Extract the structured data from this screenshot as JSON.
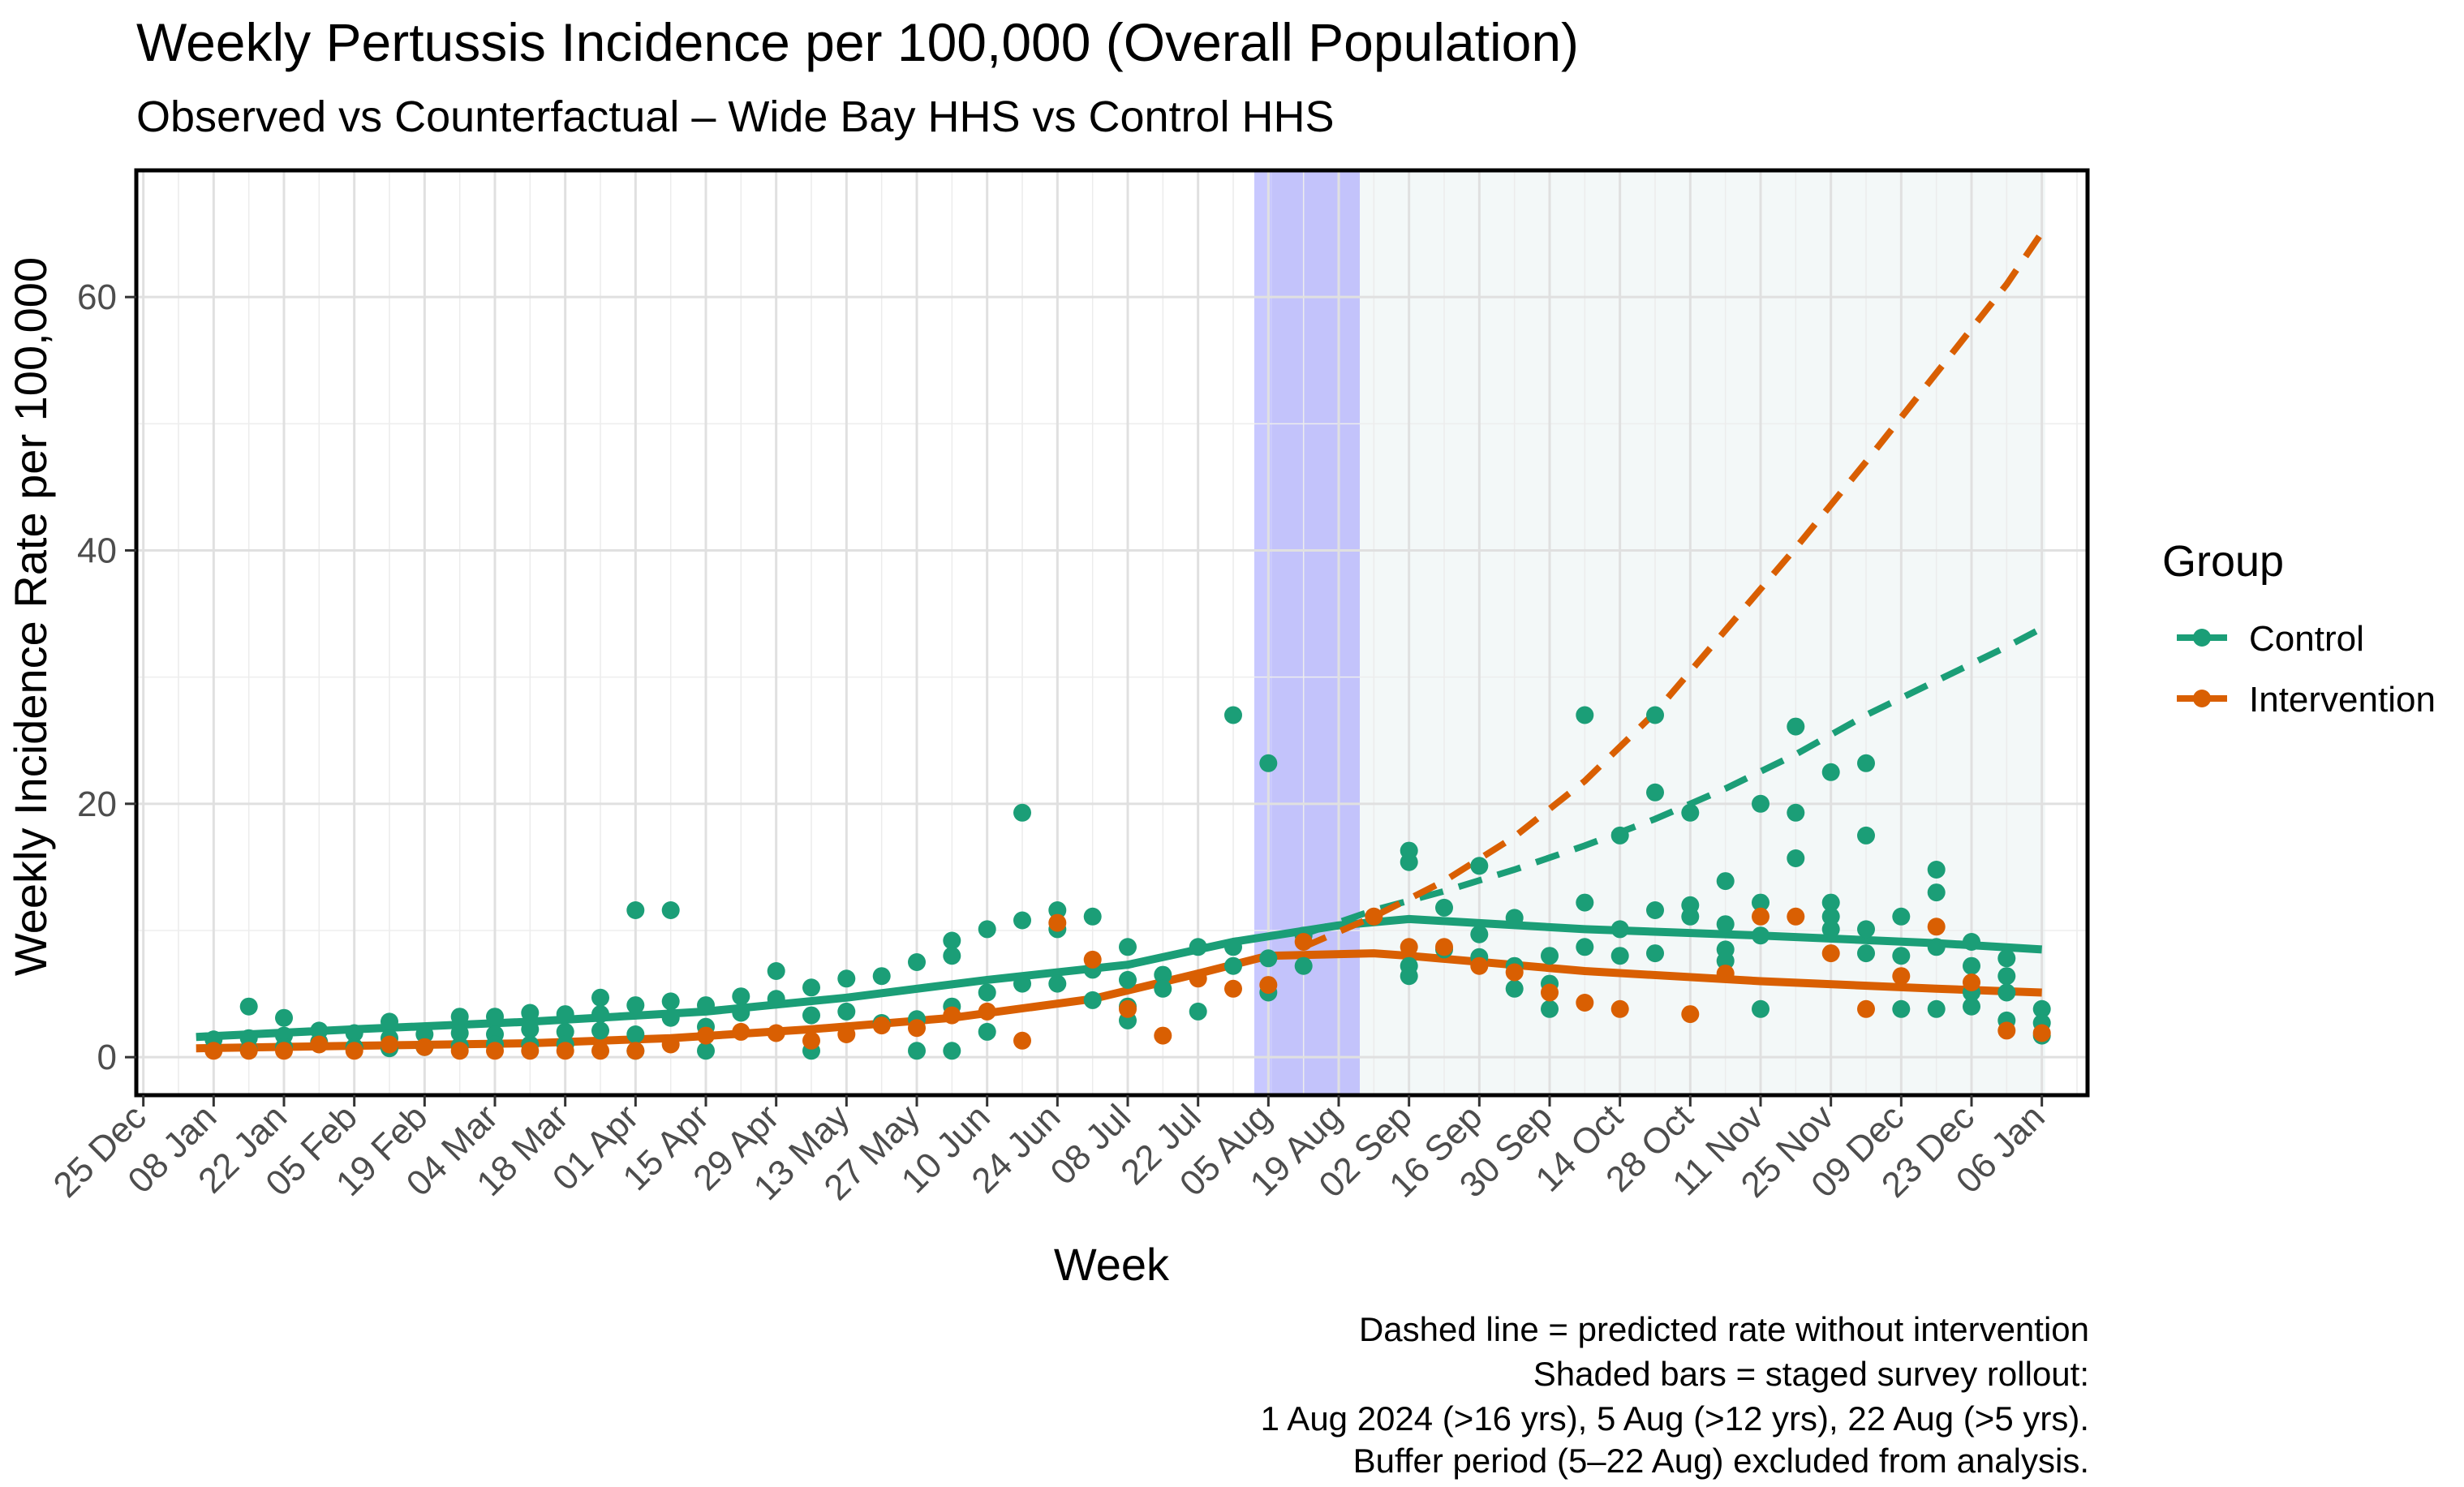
{
  "chart_data": {
    "type": "scatter",
    "title": "Weekly Pertussis Incidence per 100,000 (Overall Population)",
    "subtitle": "Observed vs Counterfactual – Wide Bay HHS vs Control HHS",
    "xlabel": "Week",
    "ylabel": "Weekly Incidence Rate per 100,000",
    "x_tick_labels": [
      "25 Dec",
      "08 Jan",
      "22 Jan",
      "05 Feb",
      "19 Feb",
      "04 Mar",
      "18 Mar",
      "01 Apr",
      "15 Apr",
      "29 Apr",
      "13 May",
      "27 May",
      "10 Jun",
      "24 Jun",
      "08 Jul",
      "22 Jul",
      "05 Aug",
      "19 Aug",
      "02 Sep",
      "16 Sep",
      "30 Sep",
      "14 Oct",
      "28 Oct",
      "11 Nov",
      "25 Nov",
      "09 Dec",
      "23 Dec",
      "06 Jan"
    ],
    "xlim_weeks": [
      -1.2,
      54.3
    ],
    "ylim": [
      -3,
      70
    ],
    "y_ticks": [
      0,
      20,
      40,
      60
    ],
    "shaded_regions": [
      {
        "label": "staged survey rollout (1 Aug)",
        "from_week": 30.6,
        "to_week": 31.1,
        "color": "#c8c8ff"
      },
      {
        "label": "buffer period (5–22 Aug)",
        "from_week": 31.1,
        "to_week": 33.6,
        "color": "#c3c3fb"
      },
      {
        "label": "post-intervention",
        "from_week": 33.6,
        "to_week": 53.1,
        "color": "#f3f8f8"
      }
    ],
    "series": [
      {
        "name": "Control",
        "color": "#1b9e77",
        "points": [
          [
            1,
            1.4
          ],
          [
            2,
            4
          ],
          [
            2,
            1.5
          ],
          [
            2,
            0.6
          ],
          [
            3,
            3.1
          ],
          [
            3,
            1.7
          ],
          [
            3,
            0.8
          ],
          [
            4,
            2.1
          ],
          [
            4,
            1.2
          ],
          [
            5,
            1.9
          ],
          [
            5,
            0.8
          ],
          [
            6,
            2.8
          ],
          [
            6,
            1.5
          ],
          [
            6,
            0.7
          ],
          [
            7,
            1.8
          ],
          [
            7,
            0.8
          ],
          [
            8,
            3.2
          ],
          [
            8,
            1.9
          ],
          [
            8,
            0.9
          ],
          [
            9,
            3.2
          ],
          [
            9,
            1.8
          ],
          [
            9,
            1
          ],
          [
            10,
            3.5
          ],
          [
            10,
            2.2
          ],
          [
            10,
            1
          ],
          [
            11,
            3.4
          ],
          [
            11,
            2
          ],
          [
            11,
            1
          ],
          [
            12,
            4.7
          ],
          [
            12,
            3.4
          ],
          [
            12,
            2.1
          ],
          [
            13,
            11.6
          ],
          [
            13,
            4.1
          ],
          [
            13,
            1.8
          ],
          [
            13,
            0.5
          ],
          [
            14,
            11.6
          ],
          [
            14,
            4.4
          ],
          [
            14,
            3.1
          ],
          [
            15,
            4.1
          ],
          [
            15,
            2.4
          ],
          [
            15,
            0.5
          ],
          [
            16,
            4.8
          ],
          [
            16,
            3.5
          ],
          [
            17,
            6.8
          ],
          [
            17,
            4.6
          ],
          [
            18,
            5.5
          ],
          [
            18,
            3.3
          ],
          [
            18,
            0.5
          ],
          [
            19,
            6.2
          ],
          [
            19,
            3.6
          ],
          [
            20,
            6.4
          ],
          [
            20,
            2.7
          ],
          [
            21,
            7.5
          ],
          [
            21,
            3
          ],
          [
            21,
            0.5
          ],
          [
            22,
            9.2
          ],
          [
            22,
            8
          ],
          [
            22,
            4
          ],
          [
            22,
            0.5
          ],
          [
            23,
            10.1
          ],
          [
            23,
            5.1
          ],
          [
            23,
            2
          ],
          [
            24,
            19.3
          ],
          [
            24,
            10.8
          ],
          [
            24,
            5.8
          ],
          [
            25,
            11.6
          ],
          [
            25,
            10.1
          ],
          [
            25,
            5.8
          ],
          [
            26,
            11.1
          ],
          [
            26,
            6.9
          ],
          [
            26,
            4.5
          ],
          [
            27,
            8.7
          ],
          [
            27,
            6.1
          ],
          [
            27,
            4
          ],
          [
            27,
            2.9
          ],
          [
            28,
            6.5
          ],
          [
            28,
            5.4
          ],
          [
            29,
            8.7
          ],
          [
            29,
            3.6
          ],
          [
            30,
            27
          ],
          [
            30,
            8.7
          ],
          [
            30,
            7.2
          ],
          [
            31,
            23.2
          ],
          [
            31,
            7.8
          ],
          [
            31,
            5.1
          ],
          [
            32,
            9.6
          ],
          [
            32,
            7.2
          ],
          [
            35,
            16.3
          ],
          [
            35,
            15.4
          ],
          [
            35,
            7.2
          ],
          [
            35,
            6.4
          ],
          [
            36,
            11.8
          ],
          [
            36,
            8.5
          ],
          [
            37,
            15.1
          ],
          [
            37,
            9.7
          ],
          [
            37,
            7.9
          ],
          [
            38,
            11
          ],
          [
            38,
            7.2
          ],
          [
            38,
            5.4
          ],
          [
            39,
            8
          ],
          [
            39,
            5.8
          ],
          [
            39,
            3.8
          ],
          [
            40,
            27
          ],
          [
            40,
            12.2
          ],
          [
            40,
            8.7
          ],
          [
            41,
            17.5
          ],
          [
            41,
            10.1
          ],
          [
            41,
            8
          ],
          [
            42,
            27
          ],
          [
            42,
            20.9
          ],
          [
            42,
            11.6
          ],
          [
            42,
            8.2
          ],
          [
            43,
            19.3
          ],
          [
            43,
            12
          ],
          [
            43,
            11.1
          ],
          [
            44,
            13.9
          ],
          [
            44,
            10.5
          ],
          [
            44,
            8.5
          ],
          [
            44,
            7.6
          ],
          [
            45,
            20
          ],
          [
            45,
            12.2
          ],
          [
            45,
            9.6
          ],
          [
            45,
            3.8
          ],
          [
            46,
            26.1
          ],
          [
            46,
            19.3
          ],
          [
            46,
            15.7
          ],
          [
            47,
            22.5
          ],
          [
            47,
            12.2
          ],
          [
            47,
            11.1
          ],
          [
            47,
            10.1
          ],
          [
            48,
            23.2
          ],
          [
            48,
            17.5
          ],
          [
            48,
            10.1
          ],
          [
            48,
            8.2
          ],
          [
            49,
            11.1
          ],
          [
            49,
            8
          ],
          [
            49,
            3.8
          ],
          [
            50,
            14.8
          ],
          [
            50,
            13
          ],
          [
            50,
            8.7
          ],
          [
            50,
            3.8
          ],
          [
            51,
            9.1
          ],
          [
            51,
            7.2
          ],
          [
            51,
            5.1
          ],
          [
            51,
            4
          ],
          [
            52,
            7.8
          ],
          [
            52,
            6.4
          ],
          [
            52,
            5.1
          ],
          [
            52,
            2.9
          ],
          [
            53,
            3.8
          ],
          [
            53,
            2.7
          ],
          [
            53,
            1.7
          ]
        ],
        "fitted_line": [
          [
            0.5,
            1.6
          ],
          [
            5,
            2.2
          ],
          [
            10,
            2.8
          ],
          [
            15,
            3.6
          ],
          [
            19,
            4.7
          ],
          [
            23,
            6.1
          ],
          [
            27,
            7.3
          ],
          [
            30,
            9.1
          ],
          [
            33,
            10.4
          ],
          [
            35,
            10.9
          ],
          [
            40,
            10.1
          ],
          [
            45,
            9.6
          ],
          [
            50,
            9
          ],
          [
            53,
            8.5
          ]
        ],
        "counterfactual_line": [
          [
            32,
            9.7
          ],
          [
            34,
            11.6
          ],
          [
            36,
            13.1
          ],
          [
            38,
            14.8
          ],
          [
            40,
            16.7
          ],
          [
            42,
            18.8
          ],
          [
            44,
            21.2
          ],
          [
            46,
            23.9
          ],
          [
            48,
            27
          ],
          [
            50,
            29.7
          ],
          [
            52,
            32.4
          ],
          [
            53.1,
            34
          ]
        ]
      },
      {
        "name": "Intervention",
        "color": "#d95f02",
        "points": [
          [
            1,
            0.5
          ],
          [
            2,
            0.5
          ],
          [
            3,
            0.5
          ],
          [
            4,
            1
          ],
          [
            5,
            0.5
          ],
          [
            6,
            1
          ],
          [
            7,
            0.8
          ],
          [
            8,
            0.5
          ],
          [
            9,
            0.5
          ],
          [
            10,
            0.5
          ],
          [
            11,
            0.5
          ],
          [
            12,
            0.5
          ],
          [
            13,
            0.5
          ],
          [
            14,
            1
          ],
          [
            15,
            1.7
          ],
          [
            16,
            2
          ],
          [
            17,
            1.9
          ],
          [
            18,
            1.3
          ],
          [
            19,
            1.8
          ],
          [
            20,
            2.5
          ],
          [
            21,
            2.3
          ],
          [
            22,
            3.3
          ],
          [
            23,
            3.6
          ],
          [
            24,
            1.3
          ],
          [
            25,
            10.6
          ],
          [
            26,
            7.7
          ],
          [
            27,
            3.8
          ],
          [
            28,
            1.7
          ],
          [
            29,
            6.2
          ],
          [
            30,
            5.4
          ],
          [
            31,
            5.7
          ],
          [
            32,
            9.1
          ],
          [
            34,
            11.1
          ],
          [
            35,
            8.7
          ],
          [
            36,
            8.7
          ],
          [
            37,
            7.2
          ],
          [
            38,
            6.7
          ],
          [
            39,
            5.1
          ],
          [
            40,
            4.3
          ],
          [
            41,
            3.8
          ],
          [
            43,
            3.4
          ],
          [
            44,
            6.6
          ],
          [
            45,
            11.1
          ],
          [
            46,
            11.1
          ],
          [
            47,
            8.2
          ],
          [
            48,
            3.8
          ],
          [
            49,
            6.4
          ],
          [
            50,
            10.3
          ],
          [
            51,
            5.9
          ],
          [
            52,
            2.1
          ],
          [
            53,
            1.9
          ]
        ],
        "fitted_line": [
          [
            0.5,
            0.7
          ],
          [
            5,
            0.9
          ],
          [
            10,
            1.1
          ],
          [
            14,
            1.5
          ],
          [
            18,
            2.2
          ],
          [
            22,
            3.1
          ],
          [
            26,
            4.6
          ],
          [
            29,
            6.6
          ],
          [
            31,
            8
          ],
          [
            34,
            8.2
          ],
          [
            35,
            8
          ],
          [
            40,
            6.8
          ],
          [
            45,
            6
          ],
          [
            50,
            5.4
          ],
          [
            53,
            5.1
          ]
        ],
        "counterfactual_line": [
          [
            32,
            8.7
          ],
          [
            34,
            11.1
          ],
          [
            36,
            13.9
          ],
          [
            38,
            17.4
          ],
          [
            40,
            21.8
          ],
          [
            42,
            27.2
          ],
          [
            44,
            33.7
          ],
          [
            46,
            40.2
          ],
          [
            48,
            47
          ],
          [
            50,
            54
          ],
          [
            52,
            61
          ],
          [
            53.1,
            65.5
          ]
        ]
      }
    ],
    "legend": {
      "title": "Group",
      "position": "right"
    },
    "caption_lines": [
      "Dashed line = predicted rate without intervention",
      "Shaded bars = staged survey rollout:",
      "1 Aug 2024 (>16 yrs), 5 Aug (>12 yrs), 22 Aug (>5 yrs).",
      "Buffer period (5–22 Aug) excluded from analysis."
    ]
  }
}
